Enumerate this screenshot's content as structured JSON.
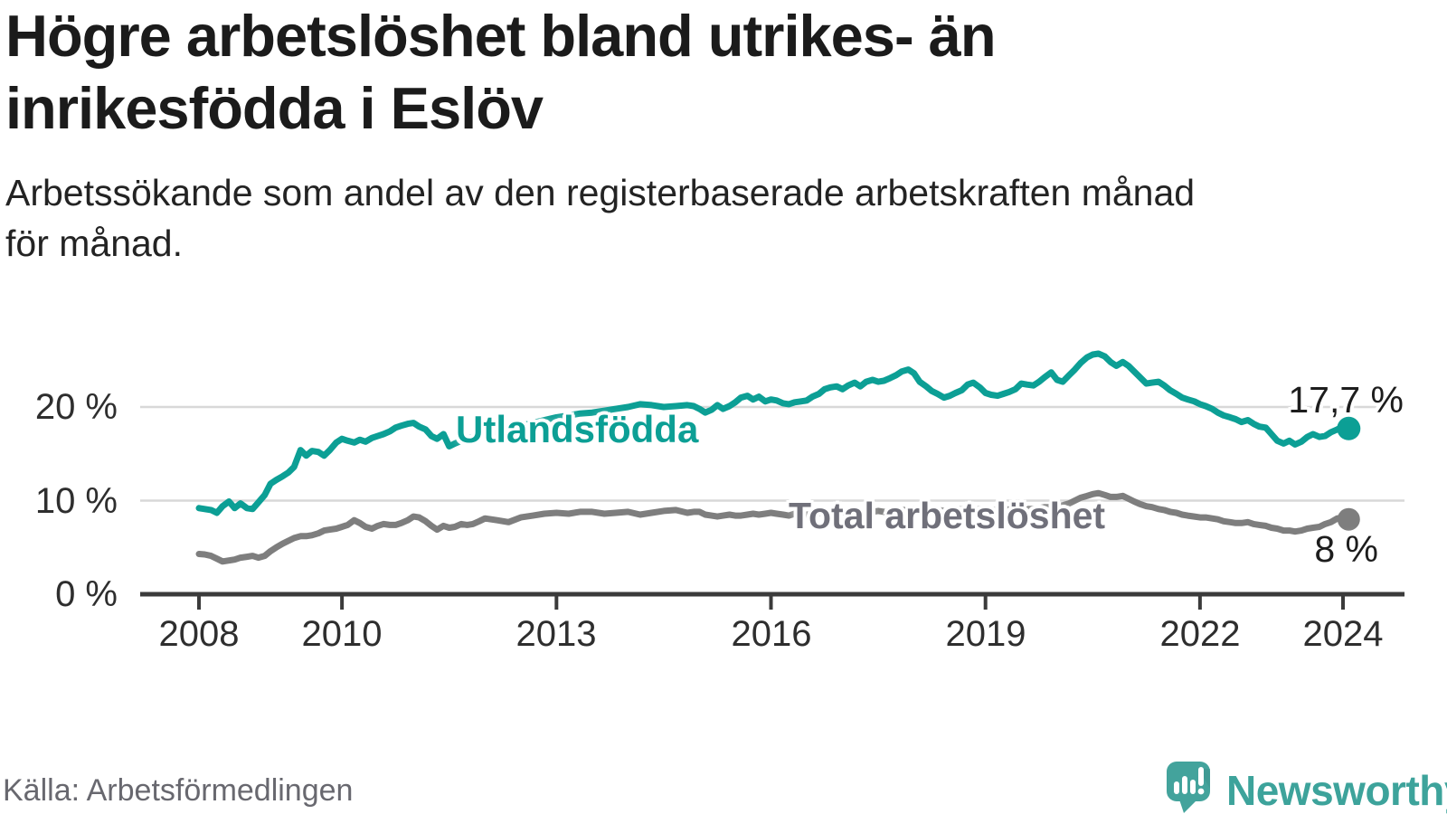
{
  "header": {
    "title": "Högre arbetslöshet bland utrikes- än inrikesfödda i Eslöv",
    "title_lines": [
      "Högre arbetslöshet bland utrikes- än",
      "inrikesfödda i Eslöv"
    ],
    "subtitle": "Arbetssökande som andel av den registerbaserade arbetskraften månad för månad.",
    "subtitle_lines": [
      "Arbetssökande som andel av den registerbaserade arbetskraften månad",
      "för månad."
    ]
  },
  "footer": {
    "source": "Källa: Arbetsförmedlingen",
    "brand": "Newsworthy"
  },
  "chart_data": {
    "type": "line",
    "title": "Högre arbetslöshet bland utrikes- än inrikesfödda i Eslöv",
    "xlabel": "",
    "ylabel": "",
    "x_range": [
      2007.2,
      2024.9
    ],
    "ylim": [
      0,
      26.5
    ],
    "grid": "horizontal",
    "legend_position": "inline-labels",
    "style": {
      "grid_color": "#d8d8d8",
      "axis_color": "#3b3b3b",
      "background": "#ffffff",
      "accent_teal": "#0c9f95",
      "accent_gray": "#7e7e7e"
    },
    "x_ticks": [
      {
        "label": "2008",
        "year": 2008
      },
      {
        "label": "2010",
        "year": 2010
      },
      {
        "label": "2013",
        "year": 2013
      },
      {
        "label": "2016",
        "year": 2016
      },
      {
        "label": "2019",
        "year": 2019
      },
      {
        "label": "2022",
        "year": 2022
      },
      {
        "label": "2024",
        "year": 2024
      }
    ],
    "y_ticks": [
      {
        "label": "0 %",
        "value": 0
      },
      {
        "label": "10 %",
        "value": 10
      },
      {
        "label": "20 %",
        "value": 20
      }
    ],
    "x": [
      2008.0,
      2008.08,
      2008.17,
      2008.25,
      2008.33,
      2008.42,
      2008.5,
      2008.58,
      2008.67,
      2008.75,
      2008.83,
      2008.92,
      2009.0,
      2009.08,
      2009.17,
      2009.25,
      2009.33,
      2009.42,
      2009.5,
      2009.58,
      2009.67,
      2009.75,
      2009.83,
      2009.92,
      2010.0,
      2010.08,
      2010.17,
      2010.25,
      2010.33,
      2010.42,
      2010.5,
      2010.58,
      2010.67,
      2010.75,
      2010.83,
      2010.92,
      2011.0,
      2011.08,
      2011.17,
      2011.25,
      2011.33,
      2011.42,
      2011.5,
      2011.58,
      2011.67,
      2011.75,
      2011.83,
      2011.92,
      2012.0,
      2012.17,
      2012.33,
      2012.5,
      2012.67,
      2012.83,
      2013.0,
      2013.17,
      2013.33,
      2013.5,
      2013.67,
      2013.83,
      2014.0,
      2014.17,
      2014.33,
      2014.5,
      2014.67,
      2014.83,
      2014.92,
      2015.0,
      2015.08,
      2015.17,
      2015.25,
      2015.33,
      2015.42,
      2015.5,
      2015.58,
      2015.67,
      2015.75,
      2015.83,
      2015.92,
      2016.0,
      2016.08,
      2016.17,
      2016.25,
      2016.33,
      2016.42,
      2016.5,
      2016.58,
      2016.67,
      2016.75,
      2016.83,
      2016.92,
      2017.0,
      2017.08,
      2017.17,
      2017.25,
      2017.33,
      2017.42,
      2017.5,
      2017.58,
      2017.67,
      2017.75,
      2017.83,
      2017.92,
      2018.0,
      2018.08,
      2018.17,
      2018.25,
      2018.33,
      2018.42,
      2018.5,
      2018.58,
      2018.67,
      2018.75,
      2018.83,
      2018.92,
      2019.0,
      2019.08,
      2019.17,
      2019.25,
      2019.33,
      2019.42,
      2019.5,
      2019.58,
      2019.67,
      2019.75,
      2019.83,
      2019.92,
      2020.0,
      2020.08,
      2020.17,
      2020.25,
      2020.33,
      2020.42,
      2020.5,
      2020.58,
      2020.67,
      2020.75,
      2020.83,
      2020.92,
      2021.0,
      2021.08,
      2021.17,
      2021.25,
      2021.33,
      2021.42,
      2021.5,
      2021.58,
      2021.67,
      2021.75,
      2021.83,
      2021.92,
      2022.0,
      2022.08,
      2022.17,
      2022.25,
      2022.33,
      2022.42,
      2022.5,
      2022.58,
      2022.67,
      2022.75,
      2022.83,
      2022.92,
      2023.0,
      2023.08,
      2023.17,
      2023.25,
      2023.33,
      2023.42,
      2023.5,
      2023.58,
      2023.67,
      2023.75,
      2023.83,
      2023.92,
      2024.0,
      2024.08
    ],
    "series": [
      {
        "name": "Utlandsfödda",
        "color": "#0c9f95",
        "end_label": "17,7 %",
        "end_value": 17.7,
        "values": [
          9.2,
          9.1,
          9.0,
          8.7,
          9.4,
          9.9,
          9.2,
          9.7,
          9.2,
          9.1,
          9.8,
          10.6,
          11.8,
          12.2,
          12.6,
          13.0,
          13.6,
          15.4,
          14.8,
          15.3,
          15.2,
          14.8,
          15.4,
          16.2,
          16.6,
          16.4,
          16.2,
          16.5,
          16.3,
          16.7,
          16.9,
          17.1,
          17.4,
          17.8,
          18.0,
          18.2,
          18.3,
          17.9,
          17.6,
          16.9,
          16.6,
          17.1,
          15.8,
          16.1,
          16.4,
          16.6,
          16.8,
          16.9,
          17.1,
          17.4,
          17.7,
          18.0,
          18.3,
          18.6,
          18.9,
          19.1,
          19.3,
          19.4,
          19.6,
          19.8,
          20.0,
          20.3,
          20.2,
          20.0,
          20.1,
          20.2,
          20.1,
          19.8,
          19.4,
          19.7,
          20.2,
          19.8,
          20.1,
          20.5,
          21.0,
          21.2,
          20.8,
          21.1,
          20.6,
          20.8,
          20.7,
          20.4,
          20.3,
          20.5,
          20.6,
          20.7,
          21.1,
          21.4,
          21.9,
          22.1,
          22.2,
          21.9,
          22.3,
          22.6,
          22.2,
          22.7,
          22.9,
          22.7,
          22.8,
          23.1,
          23.4,
          23.8,
          24.0,
          23.6,
          22.7,
          22.2,
          21.7,
          21.4,
          21.0,
          21.2,
          21.5,
          21.8,
          22.4,
          22.6,
          22.1,
          21.5,
          21.3,
          21.2,
          21.4,
          21.6,
          21.9,
          22.5,
          22.4,
          22.3,
          22.7,
          23.2,
          23.7,
          22.9,
          22.7,
          23.4,
          24.0,
          24.7,
          25.3,
          25.6,
          25.7,
          25.4,
          24.8,
          24.4,
          24.8,
          24.4,
          23.8,
          23.1,
          22.5,
          22.6,
          22.7,
          22.3,
          21.8,
          21.4,
          21.0,
          20.8,
          20.6,
          20.3,
          20.1,
          19.8,
          19.4,
          19.1,
          18.9,
          18.7,
          18.4,
          18.6,
          18.2,
          17.9,
          17.8,
          17.1,
          16.4,
          16.1,
          16.4,
          16.0,
          16.3,
          16.8,
          17.1,
          16.8,
          16.9,
          17.3,
          17.6,
          17.9,
          17.7
        ]
      },
      {
        "name": "Total arbetslöshet",
        "color": "#7e7e7e",
        "end_label": "8 %",
        "end_value": 8.0,
        "values": [
          4.3,
          4.25,
          4.1,
          3.8,
          3.5,
          3.6,
          3.7,
          3.9,
          4.0,
          4.1,
          3.9,
          4.1,
          4.6,
          5.0,
          5.4,
          5.7,
          6.0,
          6.2,
          6.2,
          6.3,
          6.5,
          6.8,
          6.9,
          7.0,
          7.2,
          7.4,
          7.9,
          7.6,
          7.2,
          7.0,
          7.3,
          7.5,
          7.4,
          7.4,
          7.6,
          7.9,
          8.3,
          8.2,
          7.8,
          7.3,
          6.9,
          7.3,
          7.1,
          7.2,
          7.5,
          7.4,
          7.5,
          7.8,
          8.1,
          7.9,
          7.7,
          8.2,
          8.4,
          8.6,
          8.7,
          8.6,
          8.8,
          8.8,
          8.6,
          8.7,
          8.8,
          8.5,
          8.7,
          8.9,
          9.0,
          8.7,
          8.8,
          8.8,
          8.5,
          8.4,
          8.3,
          8.4,
          8.5,
          8.4,
          8.4,
          8.5,
          8.6,
          8.5,
          8.6,
          8.7,
          8.6,
          8.5,
          8.4,
          8.6,
          8.5,
          8.5,
          8.6,
          8.7,
          8.6,
          8.6,
          8.7,
          8.8,
          8.7,
          8.6,
          8.6,
          8.7,
          8.8,
          8.9,
          8.8,
          8.8,
          8.9,
          9.0,
          9.0,
          9.1,
          9.0,
          8.9,
          8.8,
          9.0,
          8.9,
          8.9,
          9.0,
          9.1,
          9.0,
          9.0,
          9.1,
          9.1,
          9.0,
          9.0,
          8.9,
          9.1,
          9.2,
          9.2,
          9.1,
          9.1,
          9.2,
          9.3,
          9.3,
          9.4,
          9.5,
          9.7,
          10.0,
          10.3,
          10.5,
          10.7,
          10.8,
          10.6,
          10.4,
          10.4,
          10.5,
          10.2,
          9.9,
          9.6,
          9.4,
          9.3,
          9.1,
          9.0,
          8.8,
          8.7,
          8.5,
          8.4,
          8.3,
          8.2,
          8.2,
          8.1,
          8.0,
          7.8,
          7.7,
          7.6,
          7.6,
          7.7,
          7.5,
          7.4,
          7.3,
          7.1,
          7.0,
          6.8,
          6.8,
          6.7,
          6.8,
          7.0,
          7.1,
          7.2,
          7.5,
          7.7,
          8.1,
          8.2,
          8.0
        ]
      }
    ]
  }
}
